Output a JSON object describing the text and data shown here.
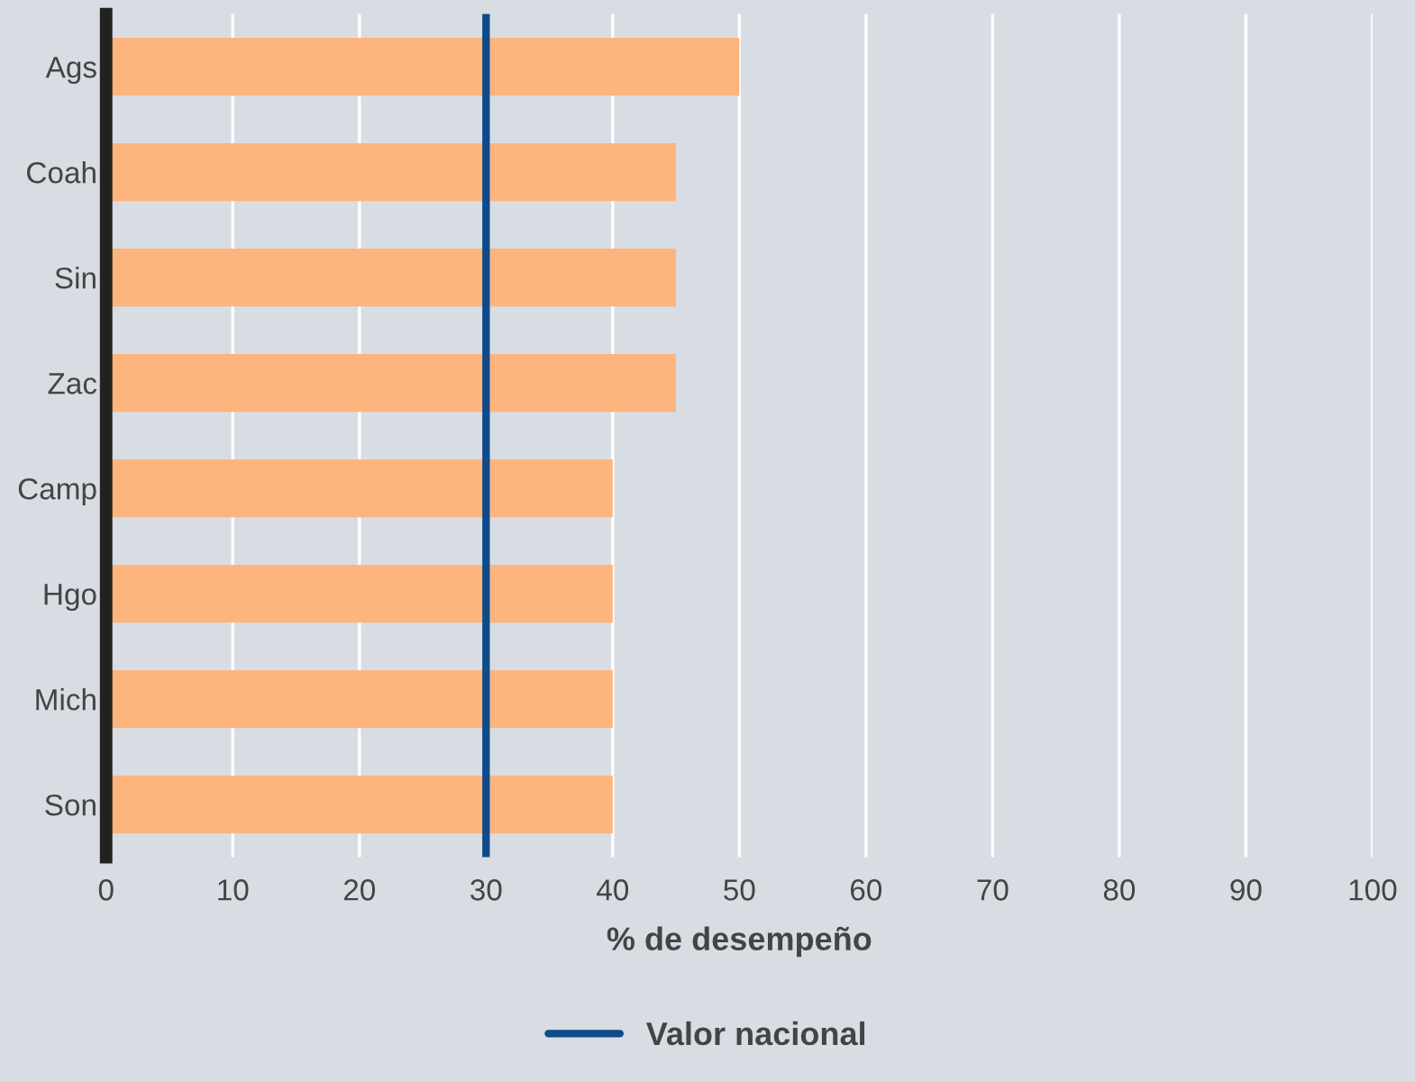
{
  "chart_data": {
    "type": "bar",
    "orientation": "horizontal",
    "xlabel": "% de desempeño",
    "categories": [
      "Ags",
      "Coah",
      "Sin",
      "Zac",
      "Camp",
      "Hgo",
      "Mich",
      "Son"
    ],
    "values": [
      50,
      45,
      45,
      45,
      40,
      40,
      40,
      40
    ],
    "color": "#fdb47d",
    "xlim": [
      0,
      100
    ],
    "xticks": [
      0,
      10,
      20,
      30,
      40,
      50,
      60,
      70,
      80,
      90,
      100
    ],
    "grid": "x",
    "ref_lines": [
      {
        "axis": "x",
        "value": 30,
        "label": "Valor nacional",
        "color": "#0f4a8a",
        "line_style": "solid"
      }
    ],
    "legend": "bottom"
  }
}
